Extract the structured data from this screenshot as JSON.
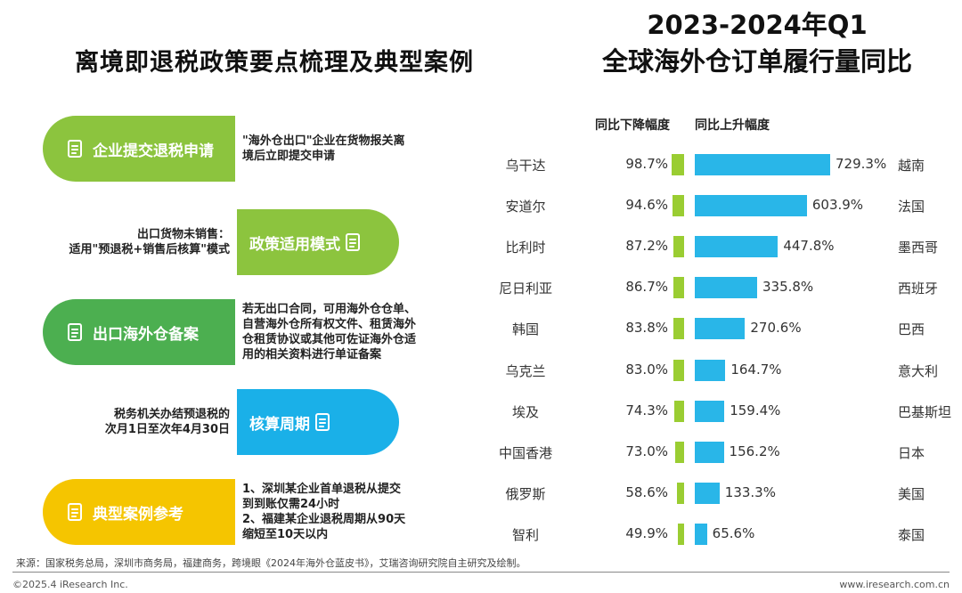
{
  "left_panel": {
    "title": "离境即退税政策要点梳理及典型案例",
    "items": [
      {
        "label": "企业提交退税申请",
        "desc": [
          "\"海外仓出口\"企业在货物报关离",
          "境后立即提交申请"
        ],
        "color": "#8cc43e",
        "side": "left",
        "icon": "handshake-icon"
      },
      {
        "label": "政策适用模式",
        "desc": [
          "出口货物未销售：",
          "适用\"预退税+销售后核算\"模式"
        ],
        "color": "#8cc43e",
        "side": "right",
        "icon": "exchange-icon"
      },
      {
        "label": "出口海外仓备案",
        "desc": [
          "若无出口合同，可用海外仓仓单、",
          "自营海外仓所有权文件、租赁海外",
          "仓租赁协议或其他可佐证海外仓适",
          "用的相关资料进行单证备案"
        ],
        "color": "#4caf50",
        "side": "left",
        "icon": "document-icon"
      },
      {
        "label": "核算周期",
        "desc": [
          "税务机关办结预退税的",
          "次月1日至次年4月30日"
        ],
        "color": "#1ab0e8",
        "side": "right",
        "icon": "cycle-icon"
      },
      {
        "label": "典型案例参考",
        "desc": [
          "1、深圳某企业首单退税从提交",
          "到到账仅需24小时",
          "2、福建某企业退税周期从90天",
          "缩短至10天以内"
        ],
        "color": "#f5c500",
        "side": "left",
        "icon": "person-icon"
      }
    ]
  },
  "right_panel": {
    "title_line1": "2023-2024年Q1",
    "title_line2": "全球海外仓订单履行量同比"
  },
  "chart_data": {
    "type": "bar",
    "title": "2023-2024年Q1 全球海外仓订单履行量同比",
    "series": [
      {
        "name": "同比下降幅度",
        "color": "#9acd32",
        "categories": [
          "乌干达",
          "安道尔",
          "比利时",
          "尼日利亚",
          "韩国",
          "乌克兰",
          "埃及",
          "中国香港",
          "俄罗斯",
          "智利"
        ],
        "values": [
          98.7,
          94.6,
          87.2,
          86.7,
          83.8,
          83.0,
          74.3,
          73.0,
          58.6,
          49.9
        ],
        "labels": [
          "98.7%",
          "94.6%",
          "87.2%",
          "86.7%",
          "83.8%",
          "83.0%",
          "74.3%",
          "73.0%",
          "58.6%",
          "49.9%"
        ]
      },
      {
        "name": "同比上升幅度",
        "color": "#29b6e8",
        "categories": [
          "越南",
          "法国",
          "墨西哥",
          "西班牙",
          "巴西",
          "意大利",
          "巴基斯坦",
          "日本",
          "美国",
          "泰国"
        ],
        "values": [
          729.3,
          603.9,
          447.8,
          335.8,
          270.6,
          164.7,
          159.4,
          156.2,
          133.3,
          65.6
        ],
        "labels": [
          "729.3%",
          "603.9%",
          "447.8%",
          "335.8%",
          "270.6%",
          "164.7%",
          "159.4%",
          "156.2%",
          "133.3%",
          "65.6%"
        ]
      }
    ]
  },
  "footer": {
    "source": "来源：国家税务总局，深圳市商务局，福建商务，跨境眼《2024年海外仓蓝皮书》，艾瑞咨询研究院自主研究及绘制。",
    "copyright": "©2025.4 iResearch Inc.",
    "website": "www.iresearch.com.cn"
  }
}
